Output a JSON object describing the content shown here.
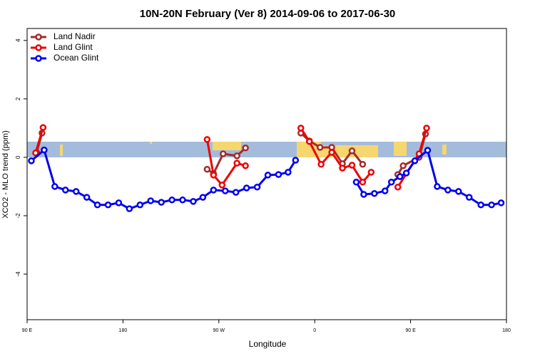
{
  "chart_data": {
    "type": "line",
    "title": "10N-20N February (Ver 8)   2014-09-06 to 2017-06-30",
    "x_label": "Longitude",
    "y_label": "XCO2 - MLO trend (ppm)",
    "xlim": [
      90,
      540
    ],
    "ylim": [
      -5.56,
      4.41
    ],
    "xticks": [
      {
        "value": 90,
        "label": "90 E"
      },
      {
        "value": 180,
        "label": "180"
      },
      {
        "value": 270,
        "label": "90 W"
      },
      {
        "value": 360,
        "label": "0"
      },
      {
        "value": 450,
        "label": "90 E"
      },
      {
        "value": 540,
        "label": "180"
      }
    ],
    "yticks": [
      4,
      2,
      0,
      -2,
      -4
    ],
    "legend": "top-left",
    "series": [
      {
        "name": "Land Nadir",
        "color": "#a52a2a",
        "x": [
          99,
          104,
          null,
          259,
          265,
          274,
          287,
          295,
          null,
          347,
          355,
          365,
          376,
          386,
          395,
          405,
          null,
          438,
          443,
          458,
          464
        ],
        "values": [
          0.17,
          0.83,
          null,
          -0.41,
          -0.56,
          0.12,
          0.05,
          0.32,
          null,
          0.83,
          0.56,
          0.34,
          0.34,
          -0.22,
          0.22,
          -0.24,
          null,
          -0.59,
          -0.29,
          0,
          0.8
        ]
      },
      {
        "name": "Land Glint",
        "color": "#ee0000",
        "x": [
          98,
          105,
          null,
          259,
          265,
          273,
          287,
          295,
          null,
          347,
          355,
          366,
          376,
          386,
          395,
          405,
          413,
          null,
          438,
          458,
          465
        ],
        "values": [
          0.15,
          1.02,
          null,
          0.61,
          -0.61,
          -0.95,
          -0.2,
          -0.29,
          null,
          1.0,
          0.54,
          -0.24,
          0.17,
          -0.37,
          -0.27,
          -0.85,
          -0.51,
          null,
          -1.02,
          0.12,
          1.0
        ]
      },
      {
        "name": "Ocean Glint",
        "color": "#0000ee",
        "x": [
          94,
          106,
          116,
          126,
          136,
          146,
          156,
          166,
          176,
          186,
          196,
          206,
          216,
          226,
          236,
          246,
          255,
          265,
          276,
          286,
          296,
          306,
          316,
          326,
          335,
          342,
          null,
          399,
          406,
          416,
          426,
          432,
          440,
          446,
          454,
          466,
          475,
          485,
          495,
          505,
          516,
          526,
          535
        ],
        "values": [
          -0.12,
          0.25,
          -1.0,
          -1.12,
          -1.17,
          -1.37,
          -1.63,
          -1.63,
          -1.56,
          -1.76,
          -1.63,
          -1.49,
          -1.54,
          -1.46,
          -1.46,
          -1.51,
          -1.37,
          -1.12,
          -1.15,
          -1.2,
          -1.05,
          -1.02,
          -0.61,
          -0.59,
          -0.51,
          -0.1,
          null,
          -0.85,
          -1.27,
          -1.24,
          -1.15,
          -0.85,
          -0.66,
          -0.54,
          -0.12,
          0.24,
          -1.0,
          -1.12,
          -1.17,
          -1.37,
          -1.63,
          -1.63,
          -1.56
        ]
      }
    ]
  }
}
